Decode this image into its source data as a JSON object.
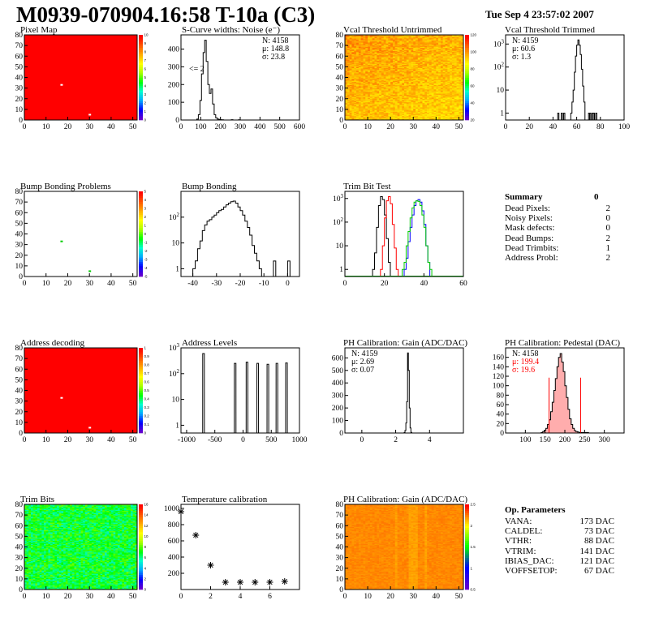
{
  "header": {
    "title": "M0939-070904.16:58 T-10a (C3)",
    "date": "Tue Sep  4 23:57:02 2007"
  },
  "summary": {
    "title": "Summary",
    "total": "0",
    "rows": [
      {
        "label": "Dead Pixels:",
        "value": "2"
      },
      {
        "label": "Noisy Pixels:",
        "value": "0"
      },
      {
        "label": "Mask defects:",
        "value": "0"
      },
      {
        "label": "Dead Bumps:",
        "value": "2"
      },
      {
        "label": "Dead Trimbits:",
        "value": "1"
      },
      {
        "label": "Address Probl:",
        "value": "2"
      }
    ]
  },
  "op_parameters": {
    "title": "Op. Parameters",
    "rows": [
      {
        "label": "VANA:",
        "value": "173 DAC"
      },
      {
        "label": "CALDEL:",
        "value": "73 DAC"
      },
      {
        "label": "VTHR:",
        "value": "88 DAC"
      },
      {
        "label": "VTRIM:",
        "value": "141 DAC"
      },
      {
        "label": "IBIAS_DAC:",
        "value": "121 DAC"
      },
      {
        "label": "VOFFSETOP:",
        "value": "67 DAC"
      }
    ]
  },
  "colors": {
    "red_line": "#ff0000",
    "blue_line": "#0000ff",
    "green_line": "#00cc00",
    "ped_fill": "#ff9999"
  },
  "chart_data": [
    {
      "id": "pixel_map",
      "type": "heatmap",
      "title": "Pixel Map",
      "xlim": [
        0,
        52
      ],
      "ylim": [
        0,
        80
      ],
      "xticks": [
        0,
        10,
        20,
        30,
        40,
        50
      ],
      "yticks": [
        0,
        10,
        20,
        30,
        40,
        50,
        60,
        70,
        80
      ],
      "palette": [
        "#ff0000"
      ],
      "defects": [
        {
          "x": 17,
          "y": 33
        },
        {
          "x": 30,
          "y": 5
        }
      ],
      "zticks": [
        "0",
        "1",
        "2",
        "3",
        "4",
        "5",
        "6",
        "7",
        "8",
        "9",
        "10"
      ]
    },
    {
      "id": "scurve",
      "type": "bar",
      "title": "S-Curve widths: Noise (e⁻)",
      "xlim": [
        0,
        600
      ],
      "ylim": [
        0,
        480
      ],
      "log": false,
      "xticks": [
        0,
        100,
        200,
        300,
        400,
        500,
        600
      ],
      "yticks": [
        0,
        100,
        200,
        300,
        400
      ],
      "stats": [
        "N: 4158",
        "μ: 148.8",
        "σ: 23.8"
      ],
      "annotation": "<= 2",
      "bins": {
        "start": 80,
        "width": 8,
        "values": [
          5,
          30,
          110,
          260,
          380,
          450,
          330,
          200,
          150,
          175,
          90,
          30,
          12,
          5,
          3,
          2,
          1
        ]
      },
      "extra": [
        {
          "x": 255,
          "y": 2
        },
        {
          "x": 290,
          "y": 1
        }
      ]
    },
    {
      "id": "vcal_untrimmed",
      "type": "heatmap",
      "title": "Vcal Threshold Untrimmed",
      "xlim": [
        0,
        52
      ],
      "ylim": [
        0,
        80
      ],
      "xticks": [
        0,
        10,
        20,
        30,
        40,
        50
      ],
      "yticks": [
        0,
        10,
        20,
        30,
        40,
        50,
        60,
        70,
        80
      ],
      "zticks": [
        "20",
        "40",
        "60",
        "80",
        "100",
        "120"
      ]
    },
    {
      "id": "vcal_trimmed",
      "type": "bar",
      "title": "Vcal Threshold Trimmed",
      "xlim": [
        0,
        100
      ],
      "ylim": [
        0.5,
        2500
      ],
      "log": true,
      "xticks": [
        0,
        20,
        40,
        60,
        80,
        100
      ],
      "yticks": [
        1,
        10,
        100,
        1000
      ],
      "stats": [
        "N: 4159",
        "μ: 60.6",
        "σ:  1.3"
      ],
      "bins": {
        "start": 55,
        "width": 1,
        "values": [
          1,
          3,
          10,
          60,
          300,
          900,
          1500,
          900,
          350,
          80,
          15,
          3
        ]
      },
      "extra": [
        {
          "x": 44,
          "y": 1
        },
        {
          "x": 47,
          "y": 1
        },
        {
          "x": 49,
          "y": 1
        },
        {
          "x": 70,
          "y": 1
        },
        {
          "x": 71,
          "y": 1
        },
        {
          "x": 73,
          "y": 1
        },
        {
          "x": 74,
          "y": 1
        },
        {
          "x": 76,
          "y": 1
        }
      ]
    },
    {
      "id": "bump_problems",
      "type": "heatmap",
      "title": "Bump Bonding Problems",
      "xlim": [
        0,
        52
      ],
      "ylim": [
        0,
        80
      ],
      "xticks": [
        0,
        10,
        20,
        30,
        40,
        50
      ],
      "yticks": [
        0,
        10,
        20,
        30,
        40,
        50,
        60,
        70,
        80
      ],
      "defects": [
        {
          "x": 17,
          "y": 33
        },
        {
          "x": 30,
          "y": 5
        }
      ],
      "zticks": [
        "-5",
        "-4",
        "-3",
        "-2",
        "-1",
        "0",
        "1",
        "2",
        "3",
        "4",
        "5"
      ]
    },
    {
      "id": "bump_bonding",
      "type": "bar",
      "title": "Bump Bonding",
      "xlim": [
        -45,
        5
      ],
      "ylim": [
        0.5,
        1000
      ],
      "log": true,
      "xticks": [
        -40,
        -30,
        -20,
        -10,
        0
      ],
      "yticks": [
        1,
        10,
        100
      ],
      "bins": {
        "start": -40,
        "width": 1,
        "values": [
          1,
          2,
          6,
          12,
          30,
          50,
          70,
          80,
          100,
          120,
          150,
          180,
          200,
          250,
          300,
          350,
          400,
          420,
          350,
          250,
          180,
          120,
          70,
          40,
          20,
          8,
          4,
          2,
          1
        ]
      },
      "extra": [
        {
          "x": -6,
          "y": 2
        },
        {
          "x": 0,
          "y": 2
        }
      ]
    },
    {
      "id": "trim_bit_test",
      "type": "line",
      "title": "Trim Bit Test",
      "xlim": [
        0,
        60
      ],
      "ylim": [
        0.5,
        2000
      ],
      "log": true,
      "xticks": [
        0,
        20,
        40,
        60
      ],
      "yticks": [
        1,
        10,
        100,
        1000
      ],
      "series": [
        {
          "color": "#000000",
          "start": 14,
          "values": [
            1,
            5,
            60,
            500,
            1200,
            900,
            200,
            20,
            2
          ]
        },
        {
          "color": "#ff0000",
          "start": 18,
          "values": [
            1,
            10,
            150,
            800,
            1200,
            600,
            80,
            8,
            1
          ]
        },
        {
          "color": "#0000ff",
          "start": 30,
          "values": [
            1,
            3,
            15,
            60,
            200,
            500,
            800,
            900,
            700,
            300,
            80,
            10,
            2
          ]
        },
        {
          "color": "#00cc00",
          "start": 29,
          "values": [
            1,
            2,
            10,
            40,
            150,
            400,
            700,
            800,
            750,
            500,
            200,
            60,
            10,
            2,
            1
          ]
        }
      ]
    },
    {
      "id": "address_decoding",
      "type": "heatmap",
      "title": "Address decoding",
      "xlim": [
        0,
        52
      ],
      "ylim": [
        0,
        80
      ],
      "xticks": [
        0,
        10,
        20,
        30,
        40,
        50
      ],
      "yticks": [
        0,
        10,
        20,
        30,
        40,
        50,
        60,
        70,
        80
      ],
      "defects": [
        {
          "x": 17,
          "y": 33
        },
        {
          "x": 30,
          "y": 5
        }
      ],
      "zticks": [
        "0",
        "0.1",
        "0.2",
        "0.3",
        "0.4",
        "0.5",
        "0.6",
        "0.7",
        "0.8",
        "0.9",
        "1"
      ]
    },
    {
      "id": "address_levels",
      "type": "bar",
      "title": "Address Levels",
      "xlim": [
        -1100,
        1000
      ],
      "ylim": [
        0.5,
        1000
      ],
      "log": true,
      "xticks": [
        -1000,
        -500,
        0,
        500,
        1000
      ],
      "yticks": [
        1,
        10,
        100,
        1000
      ],
      "peaks": [
        {
          "x": -700,
          "y": 600
        },
        {
          "x": -140,
          "y": 250
        },
        {
          "x": 70,
          "y": 280
        },
        {
          "x": 260,
          "y": 250
        },
        {
          "x": 440,
          "y": 230
        },
        {
          "x": 600,
          "y": 250
        },
        {
          "x": 770,
          "y": 260
        }
      ]
    },
    {
      "id": "ph_gain",
      "type": "bar",
      "title": "PH Calibration: Gain (ADC/DAC)",
      "xlim": [
        -1,
        6
      ],
      "ylim": [
        0,
        680
      ],
      "log": false,
      "xticks": [
        0,
        2,
        4
      ],
      "yticks": [
        0,
        100,
        200,
        300,
        400,
        500,
        600
      ],
      "stats": [
        "N: 4159",
        "μ: 2.69",
        "σ: 0.07"
      ],
      "bins": {
        "start": 2.5,
        "width": 0.05,
        "values": [
          3,
          20,
          80,
          250,
          640,
          500,
          200,
          40,
          5
        ]
      }
    },
    {
      "id": "ph_pedestal",
      "type": "bar",
      "title": "PH Calibration: Pedestal (DAC)",
      "xlim": [
        50,
        350
      ],
      "ylim": [
        0,
        180
      ],
      "log": false,
      "xticks": [
        100,
        150,
        200,
        250,
        300
      ],
      "yticks": [
        0,
        20,
        40,
        60,
        80,
        100,
        120,
        140,
        160
      ],
      "stats": [
        "N: 4158",
        "μ: 199.4",
        "σ: 19.6"
      ],
      "cuts": [
        160,
        240
      ],
      "bins": {
        "start": 140,
        "width": 4,
        "values": [
          1,
          3,
          6,
          10,
          18,
          28,
          45,
          65,
          90,
          115,
          140,
          160,
          168,
          150,
          130,
          100,
          75,
          50,
          30,
          18,
          10,
          5,
          3,
          2,
          1,
          1,
          1,
          1,
          1,
          1
        ]
      }
    },
    {
      "id": "trim_bits",
      "type": "heatmap",
      "title": "Trim Bits",
      "xlim": [
        0,
        52
      ],
      "ylim": [
        0,
        80
      ],
      "xticks": [
        0,
        10,
        20,
        30,
        40,
        50
      ],
      "yticks": [
        0,
        10,
        20,
        30,
        40,
        50,
        60,
        70,
        80
      ],
      "zticks": [
        "0",
        "2",
        "4",
        "6",
        "8",
        "10",
        "12",
        "14",
        "16"
      ]
    },
    {
      "id": "temp_cal",
      "type": "scatter",
      "title": "Temperature calibration",
      "xlim": [
        0,
        8
      ],
      "ylim": [
        0,
        1050
      ],
      "xticks": [
        0,
        2,
        4,
        6
      ],
      "yticks": [
        200,
        400,
        600,
        800,
        1000
      ],
      "points": [
        {
          "x": 0,
          "y": 960
        },
        {
          "x": 1,
          "y": 670
        },
        {
          "x": 2,
          "y": 300
        },
        {
          "x": 3,
          "y": 90
        },
        {
          "x": 4,
          "y": 90
        },
        {
          "x": 5,
          "y": 90
        },
        {
          "x": 6,
          "y": 90
        },
        {
          "x": 7,
          "y": 100
        }
      ]
    },
    {
      "id": "ph_gain_map",
      "type": "heatmap",
      "title": "PH Calibration: Gain (ADC/DAC)",
      "xlim": [
        0,
        52
      ],
      "ylim": [
        0,
        80
      ],
      "xticks": [
        0,
        10,
        20,
        30,
        40,
        50
      ],
      "yticks": [
        0,
        10,
        20,
        30,
        40,
        50,
        60,
        70,
        80
      ],
      "zticks": [
        "0.5",
        "1",
        "1.5",
        "2",
        "2.5"
      ]
    }
  ]
}
